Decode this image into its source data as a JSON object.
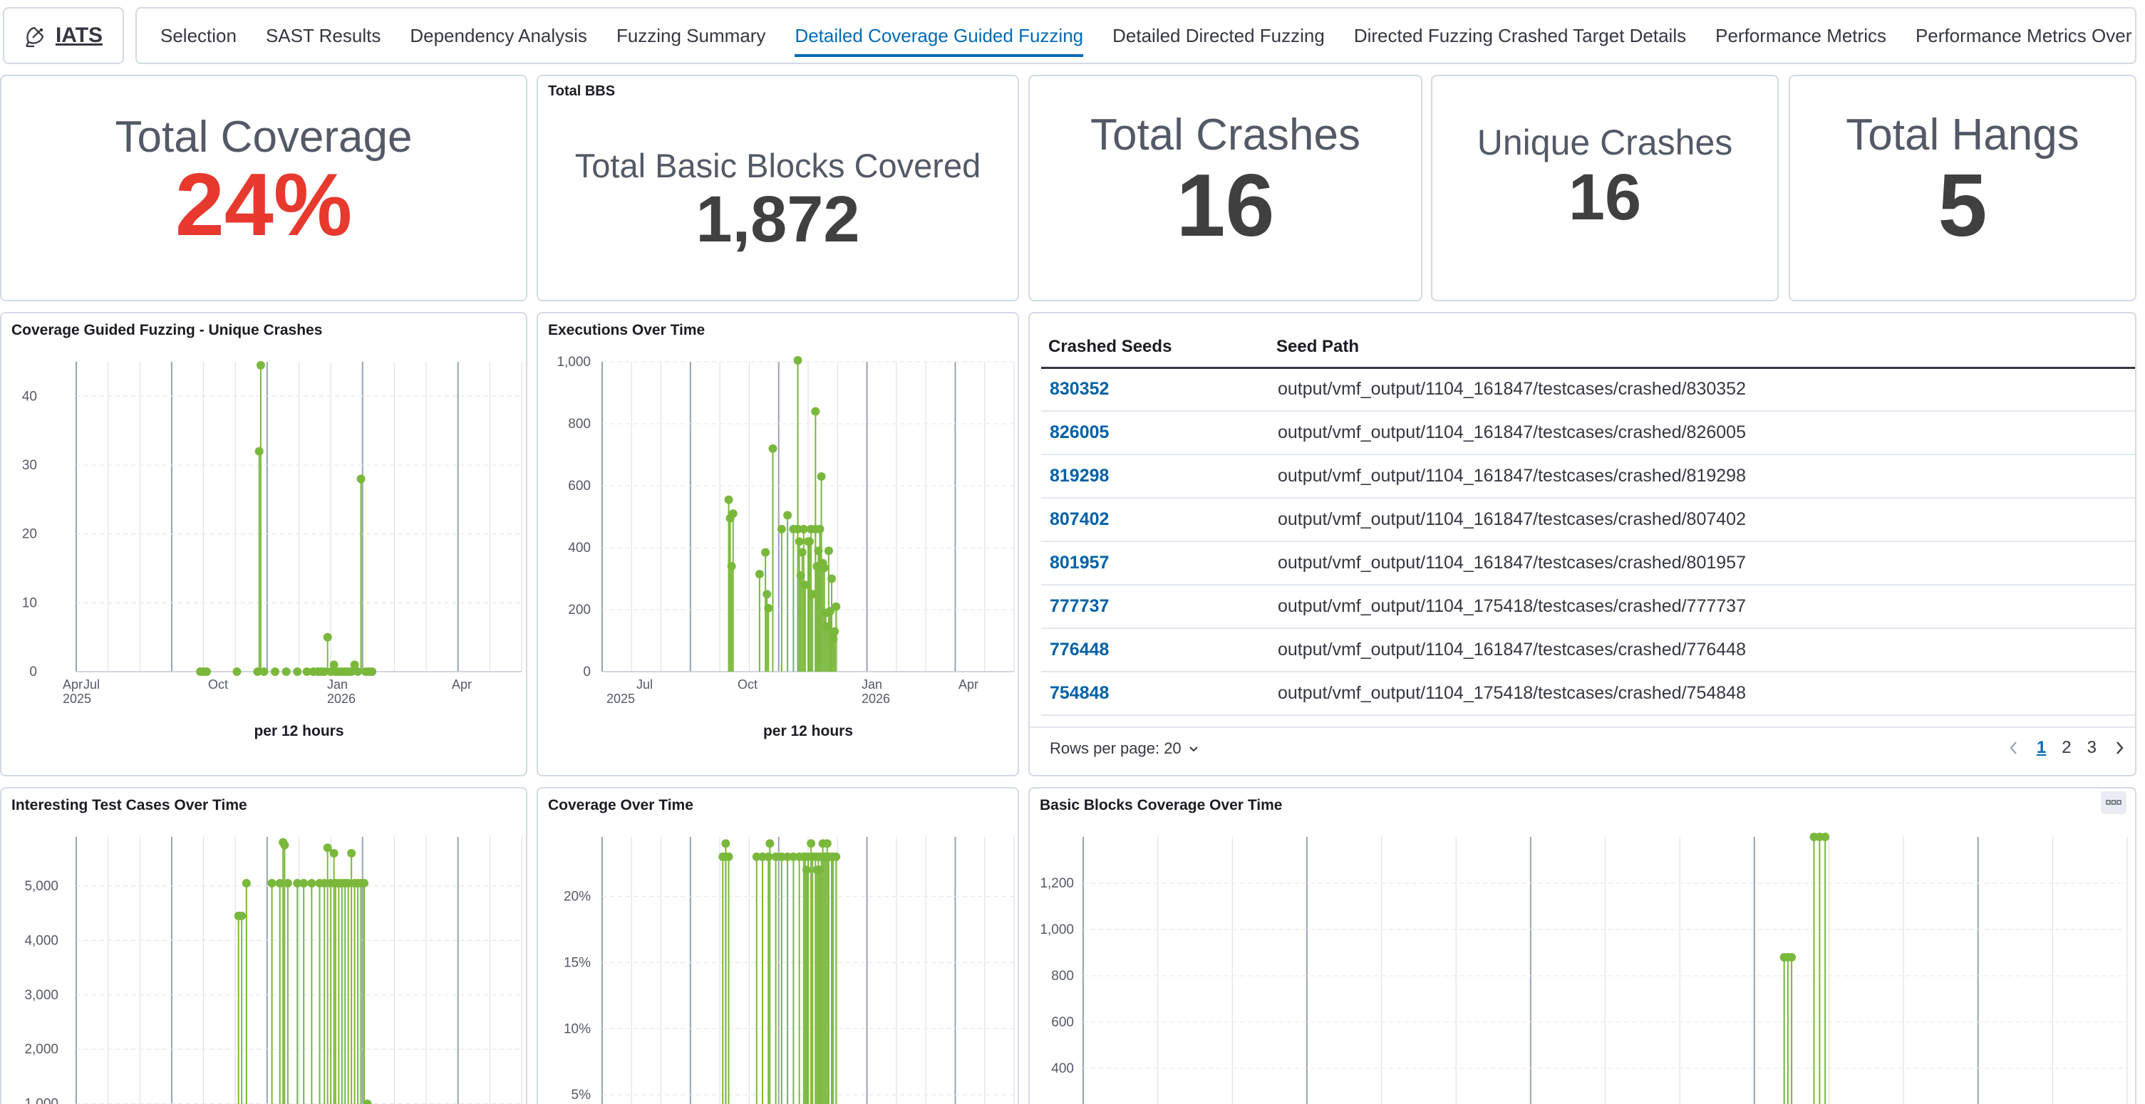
{
  "app": {
    "logo_text": "IATS",
    "logo_icon": "satellite-dish-icon"
  },
  "nav": {
    "tabs": [
      "Selection",
      "SAST Results",
      "Dependency Analysis",
      "Fuzzing Summary",
      "Detailed Coverage Guided Fuzzing",
      "Detailed Directed Fuzzing",
      "Directed Fuzzing Crashed Target Details",
      "Performance Metrics",
      "Performance Metrics Over Time"
    ],
    "active_index": 4
  },
  "metrics": {
    "total_coverage": {
      "label": "Total Coverage",
      "value": "24%",
      "color": "#e7392d"
    },
    "total_bbs": {
      "panel_title": "Total BBS",
      "label": "Total Basic Blocks Covered",
      "value": "1,872"
    },
    "total_crashes": {
      "label": "Total Crashes",
      "value": "16"
    },
    "unique_crashes": {
      "label": "Unique Crashes",
      "value": "16"
    },
    "total_hangs": {
      "label": "Total Hangs",
      "value": "5"
    }
  },
  "crashes_table": {
    "headers": [
      "Crashed Seeds",
      "Seed Path"
    ],
    "rows": [
      [
        "830352",
        "output/vmf_output/1104_161847/testcases/crashed/830352"
      ],
      [
        "826005",
        "output/vmf_output/1104_161847/testcases/crashed/826005"
      ],
      [
        "819298",
        "output/vmf_output/1104_161847/testcases/crashed/819298"
      ],
      [
        "807402",
        "output/vmf_output/1104_161847/testcases/crashed/807402"
      ],
      [
        "801957",
        "output/vmf_output/1104_161847/testcases/crashed/801957"
      ],
      [
        "777737",
        "output/vmf_output/1104_175418/testcases/crashed/777737"
      ],
      [
        "776448",
        "output/vmf_output/1104_161847/testcases/crashed/776448"
      ],
      [
        "754848",
        "output/vmf_output/1104_175418/testcases/crashed/754848"
      ]
    ],
    "rows_per_page": "Rows per page: 20",
    "pages": [
      "1",
      "2",
      "3"
    ],
    "current_page": "1"
  },
  "chart_data": [
    {
      "id": "unique_crashes_chart",
      "title": "Coverage Guided Fuzzing - Unique Crashes",
      "type": "scatter",
      "xlabel": "per 12 hours",
      "x_ticks": [
        "Apr",
        "Jul",
        "Oct",
        "Jan",
        "Apr"
      ],
      "x_years": [
        "2025",
        "2026"
      ],
      "x_range": [
        -2,
        26
      ],
      "ylim": [
        0,
        45
      ],
      "y_ticks": [
        0,
        10,
        20,
        30,
        40
      ],
      "color": "#7ab83c",
      "points": [
        [
          5.8,
          0
        ],
        [
          6.0,
          0
        ],
        [
          6.2,
          0
        ],
        [
          8.1,
          0
        ],
        [
          9.4,
          0
        ],
        [
          9.6,
          44.5
        ],
        [
          9.5,
          32
        ],
        [
          9.8,
          0
        ],
        [
          10.5,
          0
        ],
        [
          11.2,
          0
        ],
        [
          11.9,
          0
        ],
        [
          12.5,
          0
        ],
        [
          12.9,
          0
        ],
        [
          13.2,
          0
        ],
        [
          13.4,
          0
        ],
        [
          13.6,
          0
        ],
        [
          13.8,
          5
        ],
        [
          14.0,
          0
        ],
        [
          14.2,
          1
        ],
        [
          14.3,
          0
        ],
        [
          14.5,
          0
        ],
        [
          14.7,
          0
        ],
        [
          14.9,
          0
        ],
        [
          15.1,
          0
        ],
        [
          15.3,
          0
        ],
        [
          15.5,
          1
        ],
        [
          15.7,
          0
        ],
        [
          15.9,
          28
        ],
        [
          16.2,
          0
        ],
        [
          16.4,
          0
        ],
        [
          16.6,
          0
        ]
      ]
    },
    {
      "id": "executions_chart",
      "title": "Executions Over Time",
      "type": "scatter",
      "xlabel": "per 12 hours",
      "x_ticks": [
        "Jul",
        "Oct",
        "Jan",
        "Apr"
      ],
      "x_years": [
        "2025",
        "2026"
      ],
      "x_range": [
        -2,
        26
      ],
      "ylim": [
        0,
        1000
      ],
      "y_ticks": [
        0,
        200,
        400,
        600,
        800,
        "1,000"
      ],
      "color": "#7ab83c",
      "points": [
        [
          6.6,
          555
        ],
        [
          6.7,
          495
        ],
        [
          6.9,
          510
        ],
        [
          6.8,
          340
        ],
        [
          8.7,
          315
        ],
        [
          9.1,
          385
        ],
        [
          9.2,
          250
        ],
        [
          9.3,
          205
        ],
        [
          9.6,
          720
        ],
        [
          10.2,
          460
        ],
        [
          10.6,
          505
        ],
        [
          11.0,
          460
        ],
        [
          11.3,
          460
        ],
        [
          11.4,
          420
        ],
        [
          11.5,
          310
        ],
        [
          11.6,
          385
        ],
        [
          11.7,
          460
        ],
        [
          11.8,
          280
        ],
        [
          12.0,
          420
        ],
        [
          12.1,
          420
        ],
        [
          12.2,
          460
        ],
        [
          12.3,
          250
        ],
        [
          12.5,
          460
        ],
        [
          12.6,
          340
        ],
        [
          12.7,
          390
        ],
        [
          12.8,
          460
        ],
        [
          12.9,
          630
        ],
        [
          13.0,
          350
        ],
        [
          13.1,
          335
        ],
        [
          13.2,
          190
        ],
        [
          13.3,
          145
        ],
        [
          13.4,
          390
        ],
        [
          13.5,
          195
        ],
        [
          13.6,
          300
        ],
        [
          13.7,
          105
        ],
        [
          13.8,
          130
        ],
        [
          13.9,
          210
        ],
        [
          11.3,
          1005
        ],
        [
          12.5,
          840
        ]
      ]
    },
    {
      "id": "interesting_chart",
      "title": "Interesting Test Cases Over Time",
      "type": "scatter",
      "ylim": [
        800,
        5900
      ],
      "y_ticks": [
        "1,000",
        "2,000",
        "3,000",
        "4,000",
        "5,000"
      ],
      "color": "#7ab83c",
      "points": [
        [
          8.2,
          4450
        ],
        [
          8.4,
          4450
        ],
        [
          8.7,
          5050
        ],
        [
          10.3,
          5050
        ],
        [
          10.8,
          5050
        ],
        [
          11.0,
          5800
        ],
        [
          11.1,
          5750
        ],
        [
          11.3,
          5050
        ],
        [
          11.9,
          5050
        ],
        [
          12.3,
          5050
        ],
        [
          12.8,
          5050
        ],
        [
          13.3,
          5050
        ],
        [
          13.6,
          5050
        ],
        [
          13.8,
          5700
        ],
        [
          14.0,
          5050
        ],
        [
          14.2,
          5600
        ],
        [
          14.3,
          5050
        ],
        [
          14.5,
          5050
        ],
        [
          14.7,
          5050
        ],
        [
          14.9,
          5050
        ],
        [
          15.1,
          5050
        ],
        [
          15.3,
          5600
        ],
        [
          15.5,
          5050
        ],
        [
          15.7,
          5050
        ],
        [
          15.9,
          5050
        ],
        [
          16.1,
          5050
        ],
        [
          16.3,
          1000
        ]
      ]
    },
    {
      "id": "coverage_chart",
      "title": "Coverage Over Time",
      "type": "scatter",
      "ylim": [
        3.5,
        24.5
      ],
      "y_ticks": [
        "5%",
        "10%",
        "15%",
        "20%"
      ],
      "color": "#7ab83c",
      "points": [
        [
          6.2,
          23
        ],
        [
          6.4,
          23
        ],
        [
          6.6,
          23
        ],
        [
          6.4,
          24
        ],
        [
          8.5,
          23
        ],
        [
          8.9,
          23
        ],
        [
          9.3,
          23
        ],
        [
          9.4,
          24
        ],
        [
          9.8,
          23
        ],
        [
          10.2,
          23
        ],
        [
          10.6,
          23
        ],
        [
          11.0,
          23
        ],
        [
          11.4,
          23
        ],
        [
          11.7,
          23
        ],
        [
          11.8,
          23
        ],
        [
          11.9,
          22
        ],
        [
          12.0,
          23
        ],
        [
          12.2,
          24
        ],
        [
          12.3,
          23
        ],
        [
          12.5,
          23
        ],
        [
          12.6,
          22
        ],
        [
          12.7,
          23
        ],
        [
          12.8,
          22
        ],
        [
          12.9,
          23
        ],
        [
          13.0,
          24
        ],
        [
          13.1,
          23
        ],
        [
          13.2,
          23
        ],
        [
          13.3,
          24
        ],
        [
          13.4,
          23
        ],
        [
          13.6,
          23
        ],
        [
          13.7,
          23
        ],
        [
          13.9,
          23
        ]
      ]
    },
    {
      "id": "bb_chart",
      "title": "Basic Blocks Coverage Over Time",
      "type": "scatter",
      "ylim": [
        200,
        1400
      ],
      "y_ticks": [
        400,
        600,
        800,
        "1,000",
        "1,200"
      ],
      "color": "#7ab83c",
      "points": [
        [
          16.8,
          880
        ],
        [
          16.9,
          880
        ],
        [
          17.0,
          880
        ],
        [
          17.6,
          1400
        ],
        [
          17.75,
          1400
        ],
        [
          17.9,
          1400
        ]
      ]
    }
  ]
}
